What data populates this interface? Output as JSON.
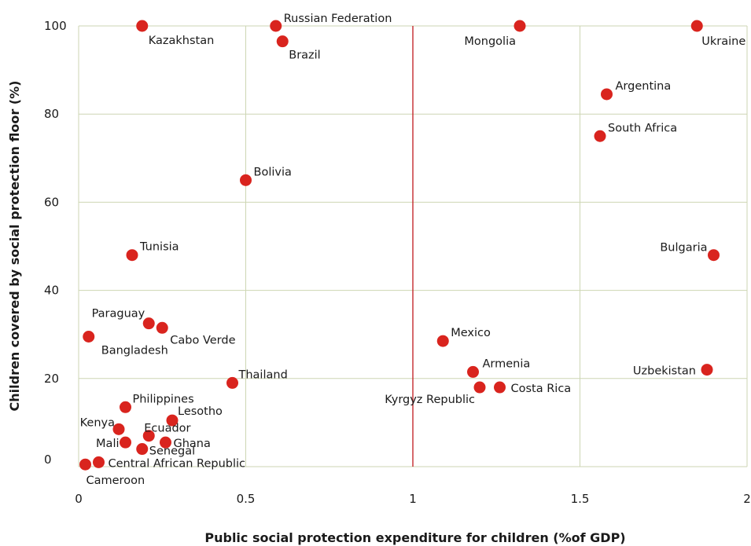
{
  "chart_data": {
    "type": "scatter",
    "xlabel": "Public social protection expenditure for children (%of GDP)",
    "ylabel": "Children covered by social protection floor (%)",
    "xlim": [
      0,
      2
    ],
    "ylim": [
      0,
      100
    ],
    "x_ticks": [
      "0",
      "0.5",
      "1",
      "1.5",
      "2"
    ],
    "y_ticks": [
      "0",
      "20",
      "40",
      "60",
      "80",
      "100"
    ],
    "reference_line_x": 1,
    "grid": true,
    "marker_color": "#d9241e",
    "reference_line_color": "#c0191e",
    "grid_color": "#cdd6b3",
    "points": [
      {
        "label": "Kazakhstan",
        "x": 0.19,
        "y": 100
      },
      {
        "label": "Russian Federation",
        "x": 0.59,
        "y": 100
      },
      {
        "label": "Brazil",
        "x": 0.61,
        "y": 96.5
      },
      {
        "label": "Mongolia",
        "x": 1.32,
        "y": 100
      },
      {
        "label": "Ukraine",
        "x": 1.85,
        "y": 100
      },
      {
        "label": "Argentina",
        "x": 1.58,
        "y": 84.5
      },
      {
        "label": "South Africa",
        "x": 1.56,
        "y": 75
      },
      {
        "label": "Bolivia",
        "x": 0.5,
        "y": 65
      },
      {
        "label": "Tunisia",
        "x": 0.16,
        "y": 48
      },
      {
        "label": "Bulgaria",
        "x": 1.9,
        "y": 48
      },
      {
        "label": "Paraguay",
        "x": 0.21,
        "y": 32.5
      },
      {
        "label": "Cabo Verde",
        "x": 0.25,
        "y": 31.5
      },
      {
        "label": "Bangladesh",
        "x": 0.03,
        "y": 29.5
      },
      {
        "label": "Mexico",
        "x": 1.09,
        "y": 28.5
      },
      {
        "label": "Armenia",
        "x": 1.18,
        "y": 21.5
      },
      {
        "label": "Uzbekistan",
        "x": 1.88,
        "y": 22
      },
      {
        "label": "Thailand",
        "x": 0.46,
        "y": 19
      },
      {
        "label": "Kyrgyz Republic",
        "x": 1.2,
        "y": 18
      },
      {
        "label": "Costa Rica",
        "x": 1.26,
        "y": 18
      },
      {
        "label": "Philippines",
        "x": 0.14,
        "y": 13.5
      },
      {
        "label": "Lesotho",
        "x": 0.28,
        "y": 10.5
      },
      {
        "label": "Kenya",
        "x": 0.12,
        "y": 8.5
      },
      {
        "label": "Ecuador",
        "x": 0.21,
        "y": 7
      },
      {
        "label": "Ghana",
        "x": 0.26,
        "y": 5.5
      },
      {
        "label": "Mali",
        "x": 0.14,
        "y": 5.5
      },
      {
        "label": "Senegal",
        "x": 0.19,
        "y": 4
      },
      {
        "label": "Central African Republic",
        "x": 0.06,
        "y": 1
      },
      {
        "label": "Cameroon",
        "x": 0.02,
        "y": 0.5
      }
    ]
  }
}
